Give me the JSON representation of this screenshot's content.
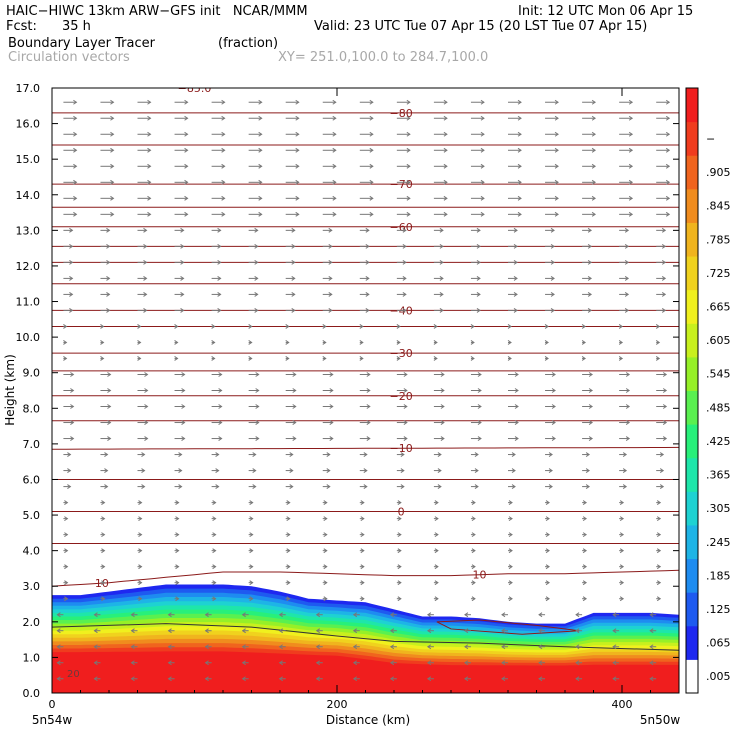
{
  "header": {
    "model": "HAIC−HIWC 13km ARW−GFS init   NCAR/MMM",
    "fcst_label": "Fcst:",
    "fcst_value": "35 h",
    "init": "Init: 12 UTC Mon 06 Apr 15",
    "valid": "Valid: 23 UTC Tue 07 Apr 15 (20 LST Tue 07 Apr 15)",
    "field": "Boundary Layer Tracer",
    "field_units": "(fraction)",
    "vectors": "Circulation vectors",
    "xy": "XY= 251.0,100.0 to 284.7,100.0"
  },
  "chart_data": {
    "type": "heatmap",
    "xlabel": "Distance (km)",
    "ylabel": "Height (km)",
    "xlim": [
      0,
      440
    ],
    "ylim": [
      0,
      17
    ],
    "x_ticks": [
      0,
      200,
      400
    ],
    "y_ticks": [
      "0.0",
      "1.0",
      "2.0",
      "3.0",
      "4.0",
      "5.0",
      "6.0",
      "7.0",
      "8.0",
      "9.0",
      "10.0",
      "11.0",
      "12.0",
      "13.0",
      "14.0",
      "15.0",
      "16.0",
      "17.0"
    ],
    "x_end_labels": {
      "left": "5n54w",
      "right": "5n50w"
    },
    "colorbar": {
      "labels": [
        ".005",
        ".065",
        ".125",
        ".185",
        ".245",
        ".305",
        ".365",
        ".425",
        ".485",
        ".545",
        ".605",
        ".665",
        ".725",
        ".785",
        ".845",
        ".905",
        "−"
      ],
      "colors": [
        "#ffffff",
        "#1e28f0",
        "#1e5af0",
        "#1e8cf0",
        "#1eb4e6",
        "#1ed2d2",
        "#1ee6aa",
        "#28f07a",
        "#5af050",
        "#96f028",
        "#c8f01e",
        "#f0f01e",
        "#f0d21e",
        "#f0b41e",
        "#f08c1e",
        "#f0641e",
        "#f03c1e",
        "#f01e1e"
      ]
    },
    "tracer_top": {
      "x": [
        0,
        20,
        40,
        60,
        80,
        100,
        120,
        140,
        160,
        180,
        200,
        220,
        240,
        260,
        280,
        300,
        320,
        340,
        360,
        380,
        400,
        420,
        440
      ],
      "height_km": [
        2.75,
        2.75,
        2.85,
        2.95,
        3.05,
        3.05,
        3.05,
        3.0,
        2.85,
        2.65,
        2.6,
        2.55,
        2.35,
        2.15,
        2.15,
        2.1,
        2.0,
        1.95,
        1.95,
        2.25,
        2.25,
        2.25,
        2.2
      ]
    },
    "red_top": {
      "x": [
        0,
        40,
        80,
        120,
        160,
        200,
        240,
        280,
        320,
        360,
        400,
        440
      ],
      "height_km": [
        1.05,
        1.05,
        1.05,
        1.05,
        1.0,
        0.95,
        0.75,
        0.7,
        0.7,
        0.7,
        0.7,
        0.7
      ]
    },
    "temperature_contours": [
      {
        "label": "10",
        "x": [
          0,
          40,
          80,
          120,
          160,
          200,
          240,
          280,
          320,
          360,
          400,
          440
        ],
        "height_km": [
          3.0,
          3.1,
          3.25,
          3.4,
          3.4,
          3.35,
          3.3,
          3.3,
          3.35,
          3.35,
          3.4,
          3.45
        ]
      },
      {
        "label": "0",
        "x": [
          0,
          440
        ],
        "height_km": [
          5.1,
          5.1
        ]
      },
      {
        "label": "−10",
        "x": [
          0,
          440
        ],
        "height_km": [
          6.85,
          6.9
        ]
      },
      {
        "label": "−20",
        "x": [
          0,
          440
        ],
        "height_km": [
          8.35,
          8.35
        ]
      },
      {
        "label": "−30",
        "x": [
          0,
          440
        ],
        "height_km": [
          9.55,
          9.55
        ]
      },
      {
        "label": "−40",
        "x": [
          0,
          440
        ],
        "height_km": [
          10.75,
          10.75
        ]
      },
      {
        "label": "−60",
        "x": [
          0,
          440
        ],
        "height_km": [
          13.1,
          13.1
        ]
      },
      {
        "label": "−70",
        "x": [
          0,
          440
        ],
        "height_km": [
          14.3,
          14.3
        ]
      },
      {
        "label": "−80",
        "x": [
          0,
          440
        ],
        "height_km": [
          16.3,
          16.3
        ]
      }
    ],
    "extra_contours_km": [
      4.2,
      6.0,
      7.65,
      9.05,
      10.3,
      11.5,
      12.1,
      12.55,
      13.65,
      15.4
    ],
    "top_left_label": "−85.0",
    "low_label": "20",
    "grid": false,
    "legend": "colorbar right"
  }
}
